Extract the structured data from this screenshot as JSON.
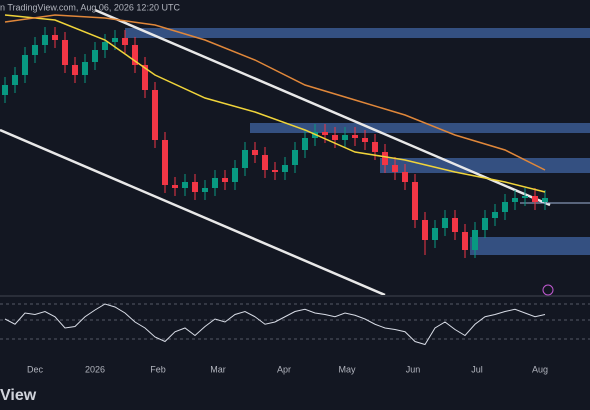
{
  "chart_data": {
    "type": "candlestick",
    "header": "n TradingView.com, Aug 06, 2026 12:20 UTC",
    "logo": "View",
    "up_color": "#089981",
    "down_color": "#f23645",
    "open": [
      200,
      210,
      220,
      240,
      250,
      260,
      255,
      230,
      220,
      233,
      245,
      253,
      257,
      250,
      230,
      205,
      155,
      110,
      107,
      113,
      103,
      107,
      117,
      113,
      127,
      145,
      140,
      125,
      123,
      130,
      145,
      157,
      163,
      160,
      155,
      160,
      157,
      153,
      143,
      130,
      123,
      113,
      75,
      55,
      67,
      77,
      63,
      45,
      65,
      77,
      83,
      93,
      97,
      99,
      93
    ],
    "high": [
      218,
      228,
      248,
      258,
      268,
      268,
      263,
      238,
      241,
      253,
      261,
      265,
      265,
      258,
      238,
      213,
      163,
      118,
      121,
      121,
      115,
      125,
      125,
      135,
      153,
      153,
      148,
      133,
      138,
      153,
      165,
      171,
      171,
      168,
      168,
      168,
      165,
      161,
      151,
      138,
      131,
      121,
      83,
      75,
      85,
      85,
      71,
      73,
      85,
      91,
      101,
      105,
      107,
      107,
      105
    ],
    "low": [
      192,
      202,
      212,
      232,
      242,
      247,
      222,
      212,
      212,
      225,
      237,
      245,
      242,
      222,
      197,
      147,
      102,
      99,
      99,
      95,
      95,
      99,
      105,
      105,
      119,
      132,
      117,
      115,
      115,
      122,
      137,
      149,
      152,
      147,
      147,
      149,
      145,
      135,
      122,
      115,
      105,
      67,
      40,
      47,
      59,
      55,
      37,
      37,
      57,
      69,
      75,
      85,
      89,
      85,
      85
    ],
    "close": [
      210,
      220,
      240,
      250,
      260,
      255,
      230,
      220,
      233,
      245,
      253,
      257,
      250,
      230,
      205,
      155,
      110,
      107,
      113,
      103,
      107,
      117,
      113,
      127,
      145,
      140,
      125,
      123,
      130,
      145,
      157,
      163,
      160,
      155,
      160,
      157,
      153,
      143,
      130,
      123,
      113,
      75,
      55,
      67,
      77,
      63,
      45,
      65,
      77,
      83,
      93,
      97,
      99,
      93,
      97
    ],
    "ylim": [
      0,
      295
    ],
    "xlim": [
      -0.5,
      58.5
    ],
    "xticks": [
      {
        "value": 3,
        "label": "Dec"
      },
      {
        "value": 9,
        "label": "2026"
      },
      {
        "value": 15.3,
        "label": "Feb"
      },
      {
        "value": 21.3,
        "label": "Mar"
      },
      {
        "value": 27.9,
        "label": "Apr"
      },
      {
        "value": 34.2,
        "label": "May"
      },
      {
        "value": 40.8,
        "label": "Jun"
      },
      {
        "value": 47.2,
        "label": "Jul"
      },
      {
        "value": 53.5,
        "label": "Aug"
      }
    ],
    "series": [
      {
        "color": "#f0d43a",
        "x": [
          0,
          5,
          10,
          15,
          20,
          25,
          30,
          35,
          40,
          45,
          50,
          54
        ],
        "values": [
          280,
          275,
          255,
          220,
          197,
          183,
          165,
          143,
          135,
          123,
          113,
          103
        ]
      },
      {
        "color": "#e0873a",
        "x": [
          0,
          5,
          10,
          15,
          20,
          25,
          30,
          35,
          40,
          45,
          50,
          54
        ],
        "values": [
          273,
          280,
          277,
          270,
          255,
          235,
          210,
          195,
          180,
          160,
          145,
          125
        ]
      }
    ],
    "rsi": {
      "color": "#d8dce6",
      "ylim": [
        0,
        100
      ],
      "values": [
        52,
        45,
        60,
        58,
        62,
        55,
        40,
        42,
        55,
        64,
        72,
        68,
        60,
        48,
        40,
        28,
        22,
        35,
        40,
        30,
        42,
        52,
        48,
        58,
        62,
        55,
        45,
        48,
        55,
        62,
        65,
        60,
        58,
        55,
        60,
        57,
        52,
        45,
        40,
        38,
        35,
        22,
        18,
        40,
        48,
        38,
        30,
        45,
        55,
        58,
        62,
        65,
        60,
        55,
        58
      ]
    }
  }
}
